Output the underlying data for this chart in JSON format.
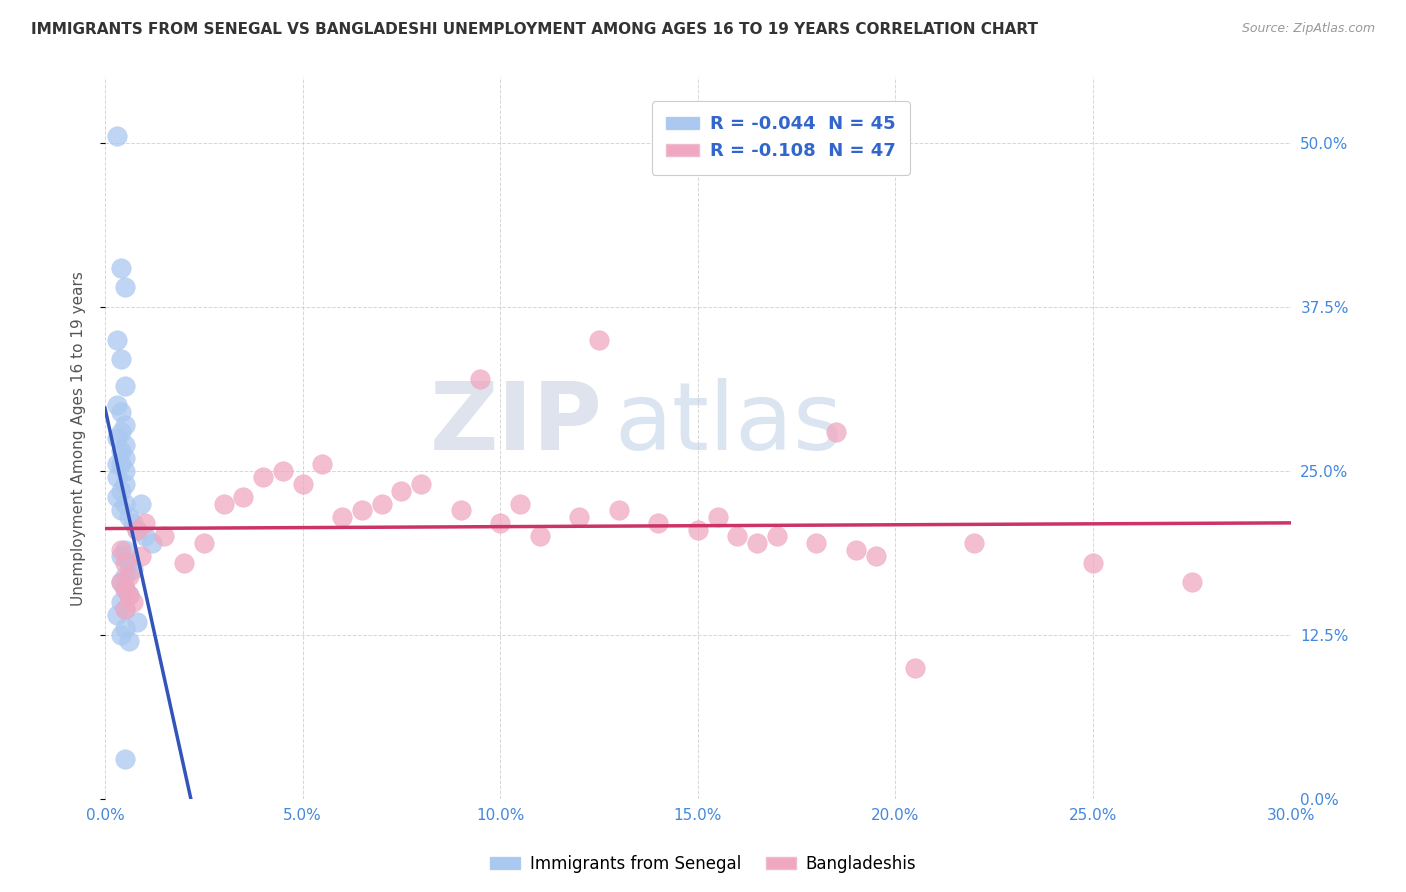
{
  "title": "IMMIGRANTS FROM SENEGAL VS BANGLADESHI UNEMPLOYMENT AMONG AGES 16 TO 19 YEARS CORRELATION CHART",
  "source": "Source: ZipAtlas.com",
  "ylabel": "Unemployment Among Ages 16 to 19 years",
  "xlabel_ticks": [
    "0.0%",
    "5.0%",
    "10.0%",
    "15.0%",
    "20.0%",
    "25.0%",
    "30.0%"
  ],
  "xlabel_vals": [
    0.0,
    5.0,
    10.0,
    15.0,
    20.0,
    25.0,
    30.0
  ],
  "ylabel_ticks": [
    "0.0%",
    "12.5%",
    "25.0%",
    "37.5%",
    "50.0%"
  ],
  "ylabel_vals": [
    0.0,
    12.5,
    25.0,
    37.5,
    50.0
  ],
  "xlim": [
    0,
    30
  ],
  "ylim": [
    0,
    55
  ],
  "blue_color": "#aac8f0",
  "pink_color": "#f0a8c0",
  "blue_line_color": "#3355bb",
  "pink_line_color": "#cc3366",
  "blue_R": "-0.044",
  "blue_N": "45",
  "pink_R": "-0.108",
  "pink_N": "47",
  "legend_label_blue": "Immigrants from Senegal",
  "legend_label_pink": "Bangladeshis",
  "watermark_zip": "ZIP",
  "watermark_atlas": "atlas",
  "blue_scatter_x": [
    0.3,
    0.4,
    0.5,
    0.3,
    0.4,
    0.5,
    0.3,
    0.4,
    0.5,
    0.4,
    0.3,
    0.5,
    0.4,
    0.5,
    0.3,
    0.4,
    0.5,
    0.3,
    0.5,
    0.4,
    0.3,
    0.5,
    0.4,
    0.6,
    0.7,
    0.8,
    1.0,
    1.2,
    0.9,
    0.5,
    0.4,
    0.6,
    0.7,
    0.5,
    0.4,
    0.5,
    0.6,
    0.4,
    0.5,
    0.3,
    0.8,
    0.5,
    0.4,
    0.6,
    0.5
  ],
  "blue_scatter_y": [
    50.5,
    40.5,
    39.0,
    35.0,
    33.5,
    31.5,
    30.0,
    29.5,
    28.5,
    28.0,
    27.5,
    27.0,
    26.5,
    26.0,
    25.5,
    25.5,
    25.0,
    24.5,
    24.0,
    23.5,
    23.0,
    22.5,
    22.0,
    21.5,
    21.0,
    20.5,
    20.0,
    19.5,
    22.5,
    19.0,
    18.5,
    18.0,
    17.5,
    17.0,
    16.5,
    16.0,
    15.5,
    15.0,
    14.5,
    14.0,
    13.5,
    13.0,
    12.5,
    12.0,
    3.0
  ],
  "pink_scatter_x": [
    0.4,
    0.5,
    0.6,
    0.4,
    0.5,
    0.6,
    0.7,
    0.5,
    0.8,
    0.9,
    1.0,
    1.5,
    2.0,
    2.5,
    3.0,
    3.5,
    4.0,
    4.5,
    5.0,
    5.5,
    6.0,
    6.5,
    7.0,
    7.5,
    8.0,
    9.0,
    10.0,
    10.5,
    11.0,
    12.0,
    13.0,
    14.0,
    15.0,
    15.5,
    16.0,
    16.5,
    17.0,
    18.0,
    19.0,
    19.5,
    20.5,
    22.0,
    25.0,
    27.5,
    12.5,
    9.5,
    18.5
  ],
  "pink_scatter_y": [
    19.0,
    18.0,
    17.0,
    16.5,
    16.0,
    15.5,
    15.0,
    14.5,
    20.5,
    18.5,
    21.0,
    20.0,
    18.0,
    19.5,
    22.5,
    23.0,
    24.5,
    25.0,
    24.0,
    25.5,
    21.5,
    22.0,
    22.5,
    23.5,
    24.0,
    22.0,
    21.0,
    22.5,
    20.0,
    21.5,
    22.0,
    21.0,
    20.5,
    21.5,
    20.0,
    19.5,
    20.0,
    19.5,
    19.0,
    18.5,
    10.0,
    19.5,
    18.0,
    16.5,
    35.0,
    32.0,
    28.0
  ]
}
